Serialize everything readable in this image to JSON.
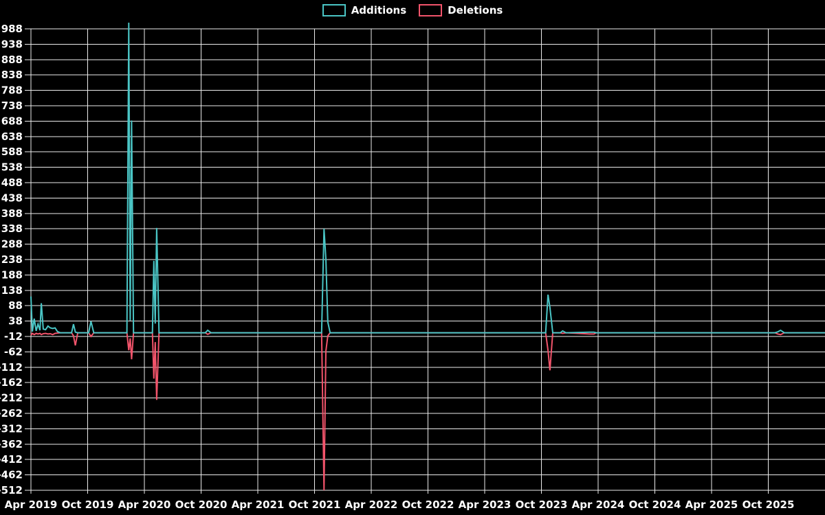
{
  "chart_data": {
    "type": "line",
    "title": "",
    "legend": [
      {
        "name": "Additions",
        "color": "#4ac5c5"
      },
      {
        "name": "Deletions",
        "color": "#f2546b"
      }
    ],
    "legend_position": "top-center",
    "grid": true,
    "background_color": "#000000",
    "grid_color": "#ededed",
    "text_color": "#ffffff",
    "x_axis": {
      "tick_labels": [
        "Apr 2019",
        "Oct 2019",
        "Apr 2020",
        "Oct 2020",
        "Apr 2021",
        "Oct 2021",
        "Apr 2022",
        "Oct 2022",
        "Apr 2023",
        "Oct 2023",
        "Apr 2024",
        "Oct 2024",
        "Apr 2025",
        "Oct 2025"
      ],
      "tick_month_offsets": [
        0,
        6,
        12,
        18,
        24,
        30,
        36,
        42,
        48,
        54,
        60,
        66,
        72,
        78
      ],
      "month_domain": [
        0,
        84
      ]
    },
    "y_axis": {
      "ticks": [
        988,
        938,
        888,
        838,
        788,
        738,
        688,
        638,
        588,
        538,
        488,
        438,
        388,
        338,
        288,
        238,
        188,
        138,
        88,
        38,
        -12,
        -62,
        -112,
        -162,
        -212,
        -262,
        -312,
        -362,
        -412,
        -462,
        -512
      ],
      "min": -512,
      "max": 988,
      "step": 50
    },
    "layout": {
      "plot_left": 44,
      "plot_right": 1200,
      "plot_top": 42,
      "plot_bottom": 714,
      "x_axis_origin": 45,
      "grid_overhang": 5,
      "x_label_y": 740,
      "y_label_right": 37
    },
    "series": [
      {
        "name": "Additions",
        "color": "#4ac5c5",
        "points": [
          [
            0,
            118
          ],
          [
            0.15,
            4
          ],
          [
            0.35,
            46
          ],
          [
            0.55,
            6
          ],
          [
            0.75,
            28
          ],
          [
            0.95,
            8
          ],
          [
            1.1,
            96
          ],
          [
            1.3,
            12
          ],
          [
            1.55,
            10
          ],
          [
            1.8,
            22
          ],
          [
            2.05,
            16
          ],
          [
            2.3,
            14
          ],
          [
            2.55,
            16
          ],
          [
            2.8,
            4
          ],
          [
            3.1,
            0
          ],
          [
            4.3,
            0
          ],
          [
            4.5,
            28
          ],
          [
            4.7,
            2
          ],
          [
            4.95,
            0
          ],
          [
            6.1,
            0
          ],
          [
            6.35,
            37
          ],
          [
            6.65,
            0
          ],
          [
            10.15,
            0
          ],
          [
            10.35,
            1008
          ],
          [
            10.5,
            40
          ],
          [
            10.65,
            690
          ],
          [
            10.85,
            0
          ],
          [
            12.85,
            0
          ],
          [
            13,
            234
          ],
          [
            13.15,
            30
          ],
          [
            13.3,
            341
          ],
          [
            13.55,
            0
          ],
          [
            18.45,
            0
          ],
          [
            18.7,
            8
          ],
          [
            19.05,
            0
          ],
          [
            30.75,
            0
          ],
          [
            31,
            338
          ],
          [
            31.2,
            240
          ],
          [
            31.4,
            35
          ],
          [
            31.65,
            0
          ],
          [
            54.45,
            0
          ],
          [
            54.7,
            124
          ],
          [
            54.9,
            82
          ],
          [
            55.2,
            0
          ],
          [
            56,
            0
          ],
          [
            56.25,
            6
          ],
          [
            56.6,
            0
          ],
          [
            59.1,
            2
          ],
          [
            59.55,
            2
          ],
          [
            59.8,
            0
          ],
          [
            78.7,
            0
          ],
          [
            79,
            3
          ],
          [
            79.3,
            8
          ],
          [
            79.7,
            0
          ],
          [
            84,
            0
          ]
        ]
      },
      {
        "name": "Deletions",
        "color": "#f2546b",
        "points": [
          [
            0,
            -8
          ],
          [
            0.15,
            -2
          ],
          [
            0.35,
            -6
          ],
          [
            0.55,
            -2
          ],
          [
            0.75,
            -4
          ],
          [
            0.95,
            -2
          ],
          [
            1.1,
            -6
          ],
          [
            1.3,
            -3
          ],
          [
            1.55,
            -2
          ],
          [
            1.8,
            -4
          ],
          [
            2.05,
            -3
          ],
          [
            2.3,
            -6
          ],
          [
            2.55,
            -2
          ],
          [
            2.8,
            -1
          ],
          [
            3.1,
            0
          ],
          [
            4.3,
            0
          ],
          [
            4.5,
            -10
          ],
          [
            4.7,
            -41
          ],
          [
            4.95,
            0
          ],
          [
            6.1,
            0
          ],
          [
            6.35,
            -12
          ],
          [
            6.65,
            0
          ],
          [
            10.15,
            0
          ],
          [
            10.35,
            -57
          ],
          [
            10.5,
            -18
          ],
          [
            10.65,
            -86
          ],
          [
            10.85,
            0
          ],
          [
            12.85,
            0
          ],
          [
            13,
            -149
          ],
          [
            13.15,
            -30
          ],
          [
            13.3,
            -218
          ],
          [
            13.55,
            0
          ],
          [
            18.45,
            0
          ],
          [
            18.7,
            -5
          ],
          [
            19.05,
            0
          ],
          [
            30.75,
            0
          ],
          [
            31,
            -512
          ],
          [
            31.2,
            -60
          ],
          [
            31.4,
            -10
          ],
          [
            31.65,
            0
          ],
          [
            54.45,
            0
          ],
          [
            54.7,
            -57
          ],
          [
            54.9,
            -122
          ],
          [
            55.2,
            0
          ],
          [
            56,
            0
          ],
          [
            56.25,
            -2
          ],
          [
            56.6,
            0
          ],
          [
            59.1,
            -4
          ],
          [
            59.55,
            -4
          ],
          [
            59.8,
            0
          ],
          [
            78.7,
            0
          ],
          [
            79,
            -4
          ],
          [
            79.3,
            -6
          ],
          [
            79.7,
            0
          ],
          [
            84,
            0
          ]
        ]
      }
    ]
  }
}
